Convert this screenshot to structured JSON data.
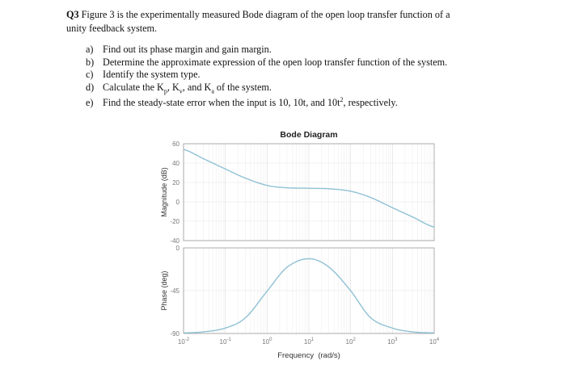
{
  "question": {
    "number": "Q3",
    "text": "Figure 3 is the experimentally measured Bode diagram of the open loop transfer function of a unity feedback system.",
    "line1_rest": "Figure 3 is the experimentally measured Bode diagram of the open loop transfer function of a",
    "line2": "unity feedback system.",
    "items": [
      {
        "label": "a)",
        "text": "Find out its phase margin and gain margin."
      },
      {
        "label": "b)",
        "text": "Determine the approximate expression of the open loop transfer function of the system."
      },
      {
        "label": "c)",
        "text": "Identify the system type."
      },
      {
        "label": "d)",
        "text_html_parts": [
          "Calculate the K",
          "p",
          ", K",
          "v",
          ", and K",
          "a",
          " of the system."
        ]
      },
      {
        "label": "e)",
        "text_html_parts": [
          "Find the steady-state error when the input is 10, 10t, and 10t",
          "2",
          ", respectively."
        ]
      }
    ]
  },
  "chart_data": [
    {
      "type": "line",
      "title": "Bode Diagram",
      "xlabel": "Frequency  (rad/s)",
      "ylabel": "Magnitude (dB)",
      "xscale": "log",
      "xlim": [
        0.01,
        10000
      ],
      "ylim": [
        -40,
        60
      ],
      "xticks": [
        "10^-2",
        "10^-1",
        "10^0",
        "10^1",
        "10^2",
        "10^3",
        "10^4"
      ],
      "yticks": [
        60,
        40,
        20,
        0,
        -20,
        -40
      ],
      "grid": true,
      "series": [
        {
          "name": "Magnitude",
          "color": "#8fc1d4",
          "x": [
            0.01,
            0.03,
            0.1,
            0.3,
            1,
            3,
            10,
            30,
            100,
            300,
            1000,
            3000,
            10000
          ],
          "y": [
            54,
            44.5,
            34,
            24.5,
            17,
            14.5,
            14,
            13.5,
            11,
            4.5,
            -6,
            -15.5,
            -26
          ]
        }
      ]
    },
    {
      "type": "line",
      "title": "",
      "xlabel": "Frequency  (rad/s)",
      "ylabel": "Phase (deg)",
      "xscale": "log",
      "xlim": [
        0.01,
        10000
      ],
      "ylim": [
        -90,
        0
      ],
      "xticks": [
        "10^-2",
        "10^-1",
        "10^0",
        "10^1",
        "10^2",
        "10^3",
        "10^4"
      ],
      "yticks": [
        0,
        -45,
        -90
      ],
      "grid": true,
      "series": [
        {
          "name": "Phase",
          "color": "#8fc1d4",
          "x": [
            0.01,
            0.03,
            0.1,
            0.3,
            1,
            3,
            10,
            30,
            100,
            300,
            1000,
            3000,
            10000
          ],
          "y": [
            -89.4,
            -88.3,
            -84.3,
            -73.6,
            -45.6,
            -20.3,
            -11.4,
            -20.2,
            -45,
            -73.5,
            -84.3,
            -88.3,
            -89.4
          ]
        }
      ]
    }
  ],
  "figure": {
    "title": "Bode Diagram",
    "xlabel": "Frequency  (rad/s)",
    "mag_ylabel": "Magnitude (dB)",
    "phase_ylabel": "Phase (deg)",
    "mag_ticks": [
      "60",
      "40",
      "20",
      "0",
      "-20",
      "-40"
    ],
    "phase_ticks": [
      "0",
      "-45",
      "-90"
    ],
    "x_tick_base": "10",
    "x_tick_exps": [
      "-2",
      "-1",
      "0",
      "1",
      "2",
      "3",
      "4"
    ],
    "curve_color": "#8fc1d4",
    "axis_color": "#9a9a9a",
    "grid_color": "#e6e6e6"
  }
}
